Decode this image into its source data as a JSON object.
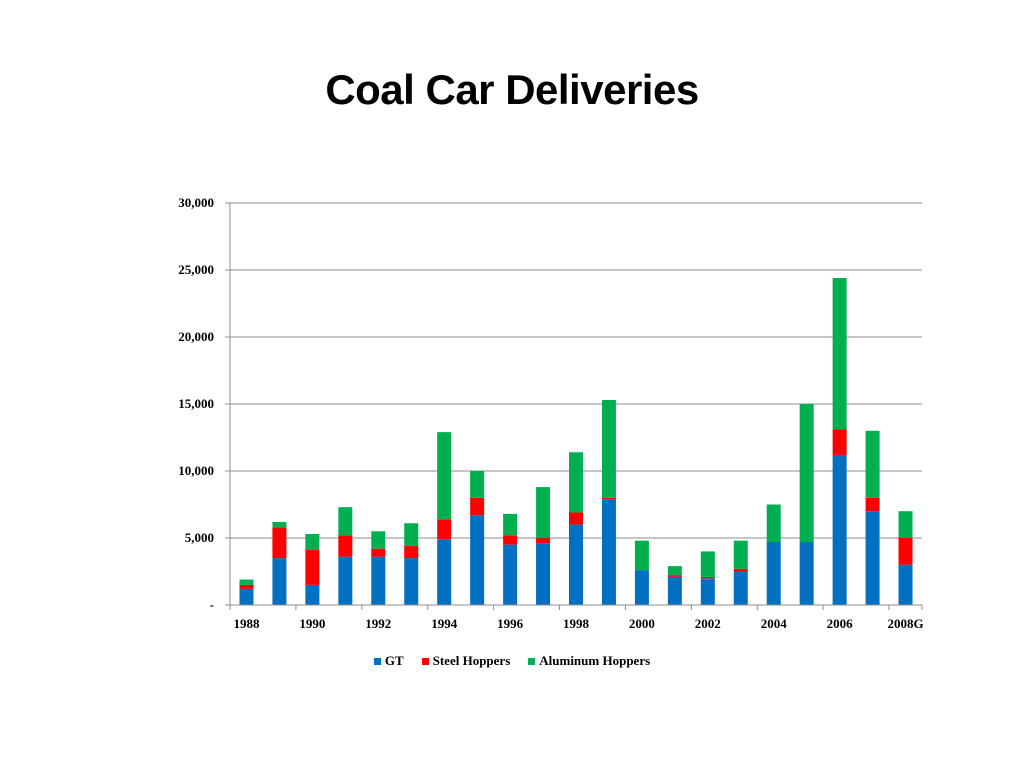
{
  "slide": {
    "title": "Coal Car Deliveries"
  },
  "chart_data": {
    "type": "bar",
    "stacked": true,
    "title": "",
    "xlabel": "",
    "ylabel": "",
    "ylim": [
      0,
      30000
    ],
    "y_ticks": [
      0,
      5000,
      10000,
      15000,
      20000,
      25000,
      30000
    ],
    "y_tick_labels": [
      "-",
      "5,000",
      "10,000",
      "15,000",
      "20,000",
      "25,000",
      "30,000"
    ],
    "grid": true,
    "legend_position": "bottom",
    "categories": [
      "1988",
      "1989",
      "1990",
      "1991",
      "1992",
      "1993",
      "1994",
      "1995",
      "1996",
      "1997",
      "1998",
      "1999",
      "2000",
      "2001",
      "2002",
      "2003",
      "2004",
      "2005",
      "2006",
      "2007",
      "2008G"
    ],
    "x_tick_labels": [
      "1988",
      "1990",
      "1992",
      "1994",
      "1996",
      "1998",
      "2000",
      "2002",
      "2004",
      "2006",
      "2008G"
    ],
    "series": [
      {
        "name": "GT",
        "color": "#0070C0",
        "values": [
          1200,
          3500,
          1500,
          3600,
          3600,
          3500,
          4900,
          6700,
          4500,
          4600,
          6000,
          7900,
          2600,
          2100,
          2000,
          2500,
          4700,
          4700,
          11200,
          7000,
          3000
        ]
      },
      {
        "name": "Steel Hoppers",
        "color": "#FF0000",
        "values": [
          300,
          2300,
          2600,
          1600,
          600,
          900,
          1500,
          1300,
          700,
          400,
          900,
          100,
          0,
          100,
          100,
          200,
          0,
          0,
          1900,
          1000,
          2000
        ]
      },
      {
        "name": "Aluminum Hoppers",
        "color": "#00B050",
        "values": [
          400,
          400,
          1200,
          2100,
          1300,
          1700,
          6500,
          2000,
          1600,
          3800,
          4500,
          7300,
          2200,
          700,
          1900,
          2100,
          2800,
          10300,
          11300,
          5000,
          2000
        ]
      }
    ]
  }
}
